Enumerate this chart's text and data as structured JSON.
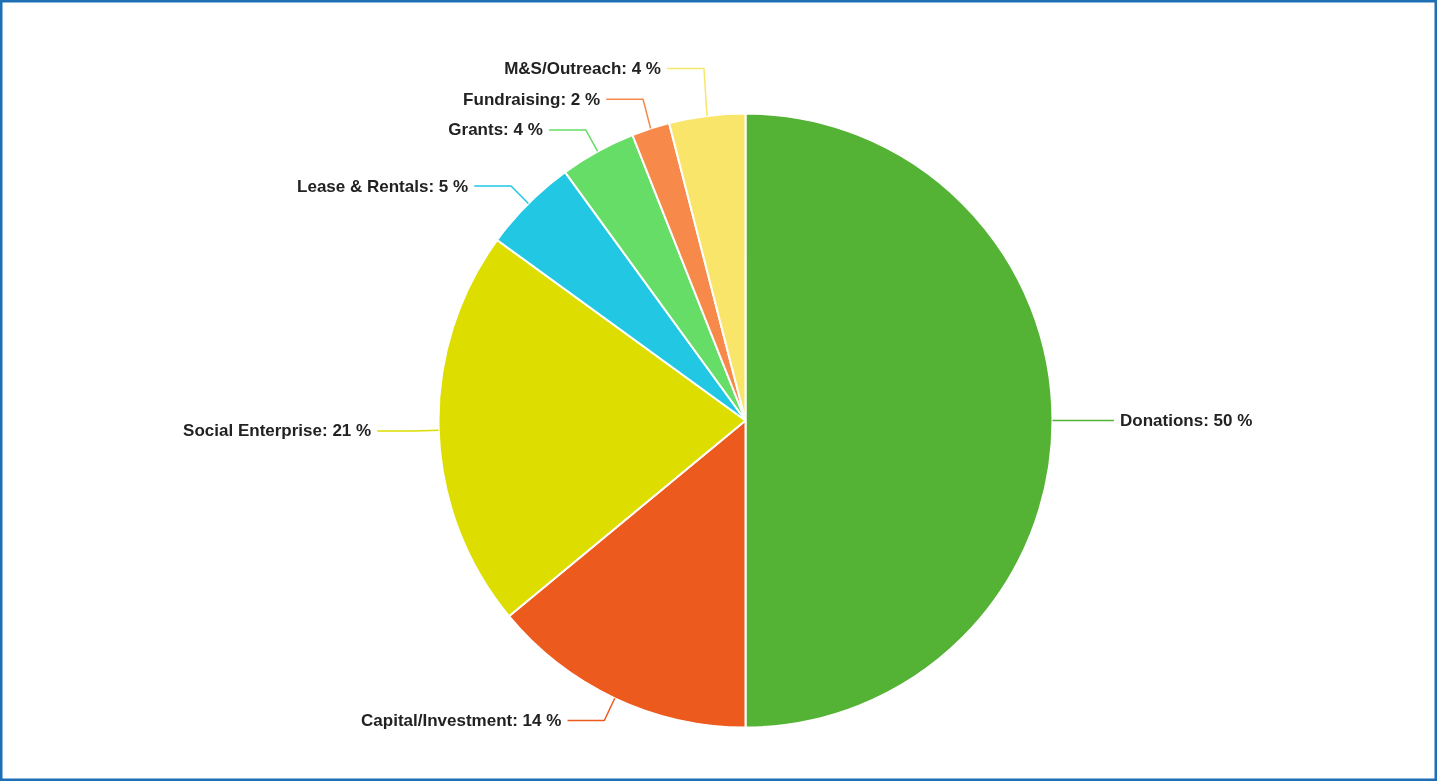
{
  "chart_data": {
    "type": "pie",
    "categories": [
      "Donations",
      "Capital/Investment",
      "Social Enterprise",
      "Lease & Rentals",
      "Grants",
      "Fundraising",
      "M&S/Outreach"
    ],
    "values": [
      50,
      14,
      21,
      5,
      4,
      2,
      4
    ],
    "colors": [
      "#54b234",
      "#ec5a1e",
      "#dddd00",
      "#22c8e3",
      "#66dd66",
      "#f7894a",
      "#f9e56a"
    ],
    "value_labels": [
      "50 %",
      "14 %",
      "21 %",
      "5 %",
      "4 %",
      "2 %",
      "4 %"
    ]
  }
}
